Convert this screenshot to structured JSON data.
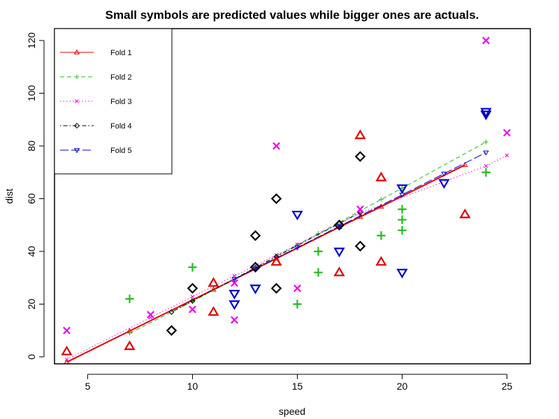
{
  "chart_data": {
    "type": "scatter",
    "title": "Small symbols are predicted values while bigger ones are actuals.",
    "xlabel": "speed",
    "ylabel": "dist",
    "xlim": [
      3,
      26
    ],
    "ylim": [
      -3,
      125
    ],
    "xticks": [
      5,
      10,
      15,
      20,
      25
    ],
    "yticks": [
      0,
      20,
      40,
      60,
      80,
      100,
      120
    ],
    "grid": false,
    "legend_position": "top-left",
    "series": [
      {
        "name": "Fold 1",
        "color": "#dd0000",
        "marker": "triangle-up",
        "line_style": "solid",
        "actual": [
          [
            4,
            2
          ],
          [
            7,
            4
          ],
          [
            11,
            17
          ],
          [
            11,
            28
          ],
          [
            14,
            36
          ],
          [
            17,
            32
          ],
          [
            18,
            84
          ],
          [
            19,
            36
          ],
          [
            19,
            68
          ],
          [
            23,
            54
          ]
        ],
        "predicted": [
          [
            4,
            -2
          ],
          [
            7,
            9.8
          ],
          [
            11,
            25.5
          ],
          [
            14,
            37.3
          ],
          [
            17,
            49.2
          ],
          [
            18,
            53.1
          ],
          [
            19,
            57
          ],
          [
            23,
            72.8
          ]
        ]
      },
      {
        "name": "Fold 2",
        "color": "#22bb22",
        "marker": "plus",
        "line_style": "dashed",
        "actual": [
          [
            7,
            22
          ],
          [
            10,
            34
          ],
          [
            15,
            20
          ],
          [
            16,
            32
          ],
          [
            16,
            40
          ],
          [
            19,
            46
          ],
          [
            20,
            48
          ],
          [
            20,
            52
          ],
          [
            20,
            56
          ],
          [
            24,
            70
          ]
        ],
        "predicted": [
          [
            7,
            9
          ],
          [
            10,
            21
          ],
          [
            15,
            42.5
          ],
          [
            16,
            46.8
          ],
          [
            19,
            59.7
          ],
          [
            20,
            64
          ],
          [
            24,
            81.5
          ]
        ]
      },
      {
        "name": "Fold 3",
        "color": "#ee00ee",
        "marker": "cross",
        "line_style": "dotted",
        "actual": [
          [
            4,
            10
          ],
          [
            8,
            16
          ],
          [
            10,
            18
          ],
          [
            12,
            14
          ],
          [
            12,
            28
          ],
          [
            14,
            80
          ],
          [
            15,
            26
          ],
          [
            18,
            56
          ],
          [
            24,
            120
          ],
          [
            25,
            85
          ]
        ],
        "predicted": [
          [
            4,
            -1
          ],
          [
            8,
            14.9
          ],
          [
            10,
            22.8
          ],
          [
            12,
            30.7
          ],
          [
            14,
            38.6
          ],
          [
            15,
            42.6
          ],
          [
            18,
            54.5
          ],
          [
            24,
            72.4
          ],
          [
            25,
            76.4
          ]
        ]
      },
      {
        "name": "Fold 4",
        "color": "#000000",
        "marker": "diamond",
        "line_style": "dotdash",
        "actual": [
          [
            9,
            10
          ],
          [
            10,
            26
          ],
          [
            13,
            34
          ],
          [
            13,
            46
          ],
          [
            14,
            26
          ],
          [
            14,
            60
          ],
          [
            17,
            50
          ],
          [
            18,
            42
          ],
          [
            18,
            76
          ]
        ],
        "predicted": [
          [
            9,
            17
          ],
          [
            10,
            21.2
          ],
          [
            13,
            33.8
          ],
          [
            14,
            38
          ],
          [
            17,
            50.6
          ],
          [
            18,
            54.8
          ]
        ]
      },
      {
        "name": "Fold 5",
        "color": "#0000cc",
        "marker": "triangle-down",
        "line_style": "longdash",
        "actual": [
          [
            12,
            20
          ],
          [
            12,
            24
          ],
          [
            13,
            26
          ],
          [
            15,
            54
          ],
          [
            17,
            40
          ],
          [
            20,
            32
          ],
          [
            20,
            64
          ],
          [
            22,
            66
          ],
          [
            24,
            92
          ],
          [
            24,
            93
          ]
        ],
        "predicted": [
          [
            12,
            29.5
          ],
          [
            13,
            33.5
          ],
          [
            15,
            41.5
          ],
          [
            17,
            49.5
          ],
          [
            20,
            61.5
          ],
          [
            22,
            69.5
          ],
          [
            24,
            77.5
          ]
        ]
      }
    ]
  }
}
